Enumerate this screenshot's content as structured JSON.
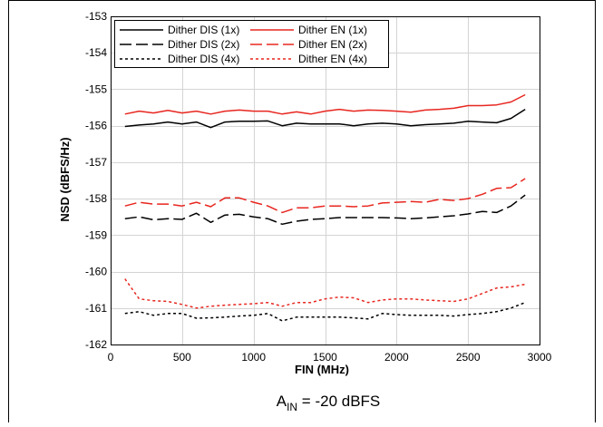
{
  "chart_data": {
    "type": "line",
    "xlabel": "FIN (MHz)",
    "ylabel": "NSD (dBFS/Hz)",
    "xlim": [
      0,
      3000
    ],
    "ylim": [
      -162,
      -153
    ],
    "xticks": [
      "0",
      "500",
      "1000",
      "1500",
      "2000",
      "2500",
      "3000"
    ],
    "yticks": [
      "-153",
      "-154",
      "-155",
      "-156",
      "-157",
      "-158",
      "-159",
      "-160",
      "-161",
      "-162"
    ],
    "caption": {
      "main": "A",
      "sub": "IN",
      "rest": " = -20 dBFS"
    },
    "legend_position": "top-left",
    "grid": true,
    "x": [
      100,
      200,
      300,
      400,
      500,
      600,
      700,
      800,
      900,
      1000,
      1100,
      1200,
      1300,
      1400,
      1500,
      1600,
      1700,
      1800,
      1900,
      2000,
      2100,
      2200,
      2300,
      2400,
      2500,
      2600,
      2700,
      2800,
      2900
    ],
    "series": [
      {
        "name": "Dither DIS (1x)",
        "color": "#000000",
        "dash": "solid",
        "values": [
          -156.02,
          -155.98,
          -155.95,
          -155.9,
          -155.95,
          -155.9,
          -156.05,
          -155.9,
          -155.88,
          -155.88,
          -155.87,
          -156.0,
          -155.93,
          -155.95,
          -155.95,
          -155.95,
          -156.0,
          -155.95,
          -155.93,
          -155.95,
          -156.0,
          -155.97,
          -155.95,
          -155.93,
          -155.88,
          -155.9,
          -155.92,
          -155.8,
          -155.55
        ]
      },
      {
        "name": "Dither EN (1x)",
        "color": "#e8261f",
        "dash": "solid",
        "values": [
          -155.68,
          -155.6,
          -155.65,
          -155.58,
          -155.65,
          -155.6,
          -155.68,
          -155.6,
          -155.57,
          -155.6,
          -155.6,
          -155.68,
          -155.62,
          -155.68,
          -155.6,
          -155.55,
          -155.6,
          -155.57,
          -155.58,
          -155.6,
          -155.63,
          -155.57,
          -155.55,
          -155.52,
          -155.45,
          -155.45,
          -155.43,
          -155.35,
          -155.15
        ]
      },
      {
        "name": "Dither DIS (2x)",
        "color": "#000000",
        "dash": "long",
        "values": [
          -158.55,
          -158.5,
          -158.58,
          -158.55,
          -158.57,
          -158.4,
          -158.65,
          -158.45,
          -158.43,
          -158.5,
          -158.55,
          -158.7,
          -158.62,
          -158.57,
          -158.55,
          -158.52,
          -158.52,
          -158.52,
          -158.52,
          -158.53,
          -158.55,
          -158.53,
          -158.5,
          -158.47,
          -158.42,
          -158.35,
          -158.38,
          -158.2,
          -157.9
        ]
      },
      {
        "name": "Dither EN (2x)",
        "color": "#e8261f",
        "dash": "long",
        "values": [
          -158.2,
          -158.1,
          -158.15,
          -158.15,
          -158.2,
          -158.1,
          -158.22,
          -157.98,
          -157.98,
          -158.1,
          -158.2,
          -158.38,
          -158.25,
          -158.25,
          -158.2,
          -158.2,
          -158.22,
          -158.2,
          -158.12,
          -158.1,
          -158.08,
          -158.1,
          -158.02,
          -158.05,
          -158.0,
          -157.88,
          -157.72,
          -157.7,
          -157.45
        ]
      },
      {
        "name": "Dither DIS (4x)",
        "color": "#000000",
        "dash": "dot",
        "values": [
          -161.15,
          -161.1,
          -161.2,
          -161.15,
          -161.15,
          -161.28,
          -161.27,
          -161.25,
          -161.22,
          -161.2,
          -161.15,
          -161.35,
          -161.25,
          -161.25,
          -161.25,
          -161.25,
          -161.27,
          -161.3,
          -161.15,
          -161.18,
          -161.2,
          -161.2,
          -161.2,
          -161.22,
          -161.18,
          -161.15,
          -161.1,
          -161.0,
          -160.85
        ]
      },
      {
        "name": "Dither EN (4x)",
        "color": "#e8261f",
        "dash": "dot",
        "values": [
          -160.2,
          -160.75,
          -160.8,
          -160.82,
          -160.9,
          -161.0,
          -160.95,
          -160.92,
          -160.9,
          -160.88,
          -160.85,
          -160.95,
          -160.85,
          -160.85,
          -160.75,
          -160.7,
          -160.72,
          -160.85,
          -160.78,
          -160.75,
          -160.75,
          -160.78,
          -160.8,
          -160.82,
          -160.75,
          -160.6,
          -160.45,
          -160.42,
          -160.35
        ]
      }
    ]
  }
}
